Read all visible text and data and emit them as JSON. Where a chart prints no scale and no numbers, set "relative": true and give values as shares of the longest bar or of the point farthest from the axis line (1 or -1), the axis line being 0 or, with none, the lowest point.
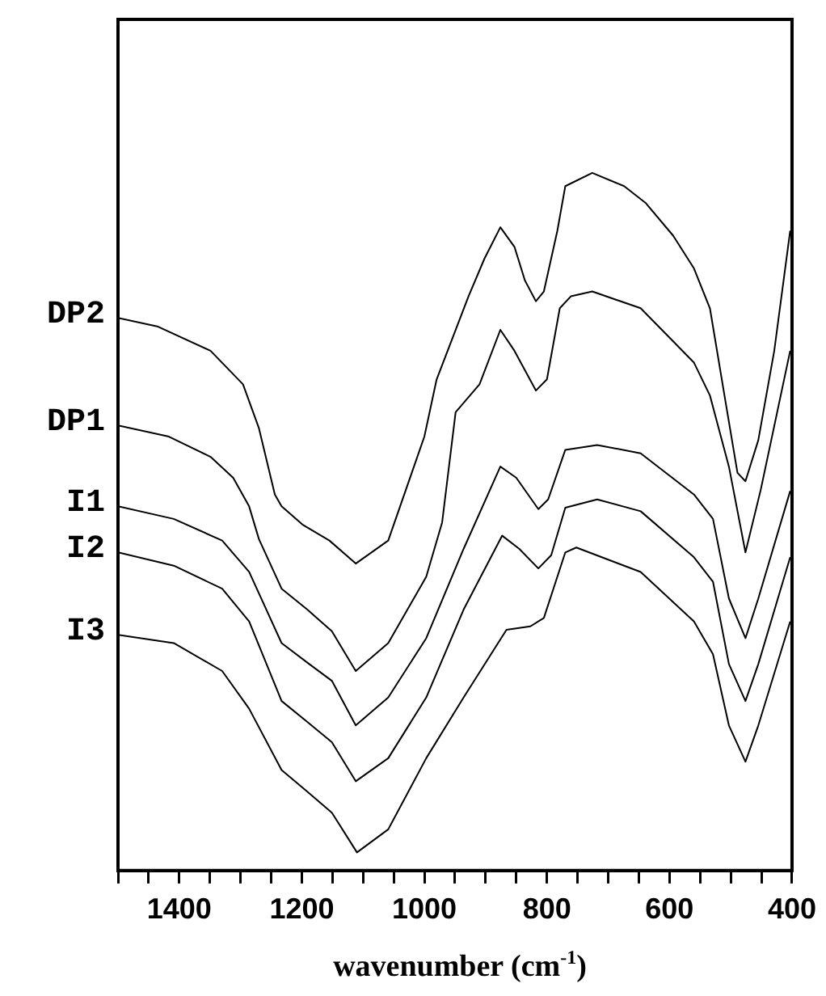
{
  "chart_data": {
    "type": "line",
    "xlabel": "wavenumber (cm$^{-1}$)",
    "relative": true,
    "xlim": [
      1500,
      400
    ],
    "xticks": [
      {
        "value": 1500,
        "label": null
      },
      {
        "value": 1450,
        "label": null
      },
      1400,
      {
        "value": 1350,
        "label": null
      },
      {
        "value": 1300,
        "label": null
      },
      {
        "value": 1250,
        "label": null
      },
      1200,
      {
        "value": 1150,
        "label": null
      },
      {
        "value": 1100,
        "label": null
      },
      {
        "value": 1050,
        "label": null
      },
      1000,
      {
        "value": 950,
        "label": null
      },
      {
        "value": 900,
        "label": null
      },
      {
        "value": 850,
        "label": null
      },
      800,
      {
        "value": 750,
        "label": null
      },
      {
        "value": 700,
        "label": null
      },
      {
        "value": 650,
        "label": null
      },
      600,
      {
        "value": 550,
        "label": null
      },
      {
        "value": 500,
        "label": null
      },
      {
        "value": 450,
        "label": null
      },
      400
    ],
    "tick_labels": "x",
    "grid": false,
    "legend": false,
    "marker": "none",
    "line_style": "solid",
    "series": [
      {
        "name": "DP2",
        "color": "#000000",
        "x": [
          1500,
          1436,
          1349,
          1296,
          1270,
          1244,
          1233,
          1199,
          1155,
          1112,
          1059,
          1000,
          980,
          928,
          902,
          876,
          853,
          836,
          818,
          805,
          783,
          770,
          726,
          674,
          639,
          594,
          560,
          534,
          507,
          489,
          476,
          455,
          429,
          403
        ],
        "values": [
          0.792,
          0.78,
          0.745,
          0.697,
          0.634,
          0.539,
          0.522,
          0.496,
          0.473,
          0.44,
          0.473,
          0.622,
          0.704,
          0.823,
          0.877,
          0.922,
          0.894,
          0.846,
          0.816,
          0.83,
          0.917,
          0.981,
          1.0,
          0.981,
          0.957,
          0.91,
          0.863,
          0.806,
          0.664,
          0.57,
          0.558,
          0.617,
          0.745,
          0.917
        ]
      },
      {
        "name": "DP1",
        "color": "#000000",
        "x": [
          1500,
          1417,
          1349,
          1312,
          1286,
          1270,
          1233,
          1191,
          1151,
          1112,
          1059,
          997,
          971,
          949,
          910,
          876,
          853,
          818,
          800,
          779,
          761,
          726,
          647,
          560,
          534,
          503,
          476,
          451,
          403
        ],
        "values": [
          0.638,
          0.622,
          0.593,
          0.563,
          0.522,
          0.475,
          0.404,
          0.374,
          0.343,
          0.286,
          0.326,
          0.421,
          0.499,
          0.657,
          0.697,
          0.775,
          0.745,
          0.688,
          0.704,
          0.806,
          0.823,
          0.83,
          0.806,
          0.728,
          0.681,
          0.579,
          0.456,
          0.546,
          0.745
        ]
      },
      {
        "name": "I1",
        "color": "#000000",
        "x": [
          1500,
          1409,
          1330,
          1286,
          1233,
          1191,
          1151,
          1112,
          1059,
          997,
          936,
          876,
          850,
          814,
          798,
          770,
          718,
          647,
          560,
          529,
          503,
          476,
          455,
          403
        ],
        "values": [
          0.522,
          0.504,
          0.473,
          0.428,
          0.326,
          0.298,
          0.272,
          0.208,
          0.248,
          0.333,
          0.461,
          0.579,
          0.563,
          0.518,
          0.532,
          0.603,
          0.61,
          0.598,
          0.539,
          0.504,
          0.39,
          0.333,
          0.39,
          0.544
        ]
      },
      {
        "name": "I2",
        "color": "#000000",
        "x": [
          1500,
          1409,
          1330,
          1286,
          1233,
          1191,
          1151,
          1112,
          1059,
          997,
          936,
          873,
          845,
          814,
          793,
          770,
          718,
          647,
          560,
          529,
          503,
          476,
          455,
          403
        ],
        "values": [
          0.456,
          0.437,
          0.404,
          0.357,
          0.243,
          0.213,
          0.184,
          0.128,
          0.161,
          0.248,
          0.374,
          0.48,
          0.461,
          0.433,
          0.452,
          0.52,
          0.532,
          0.515,
          0.449,
          0.414,
          0.296,
          0.243,
          0.296,
          0.449
        ]
      },
      {
        "name": "I3",
        "color": "#000000",
        "x": [
          1500,
          1409,
          1330,
          1286,
          1233,
          1191,
          1151,
          1110,
          1059,
          997,
          936,
          866,
          827,
          805,
          770,
          752,
          647,
          560,
          529,
          503,
          476,
          455,
          403
        ],
        "values": [
          0.338,
          0.326,
          0.286,
          0.232,
          0.144,
          0.113,
          0.083,
          0.026,
          0.059,
          0.161,
          0.248,
          0.345,
          0.35,
          0.362,
          0.456,
          0.463,
          0.428,
          0.357,
          0.31,
          0.208,
          0.156,
          0.208,
          0.357
        ]
      }
    ]
  }
}
